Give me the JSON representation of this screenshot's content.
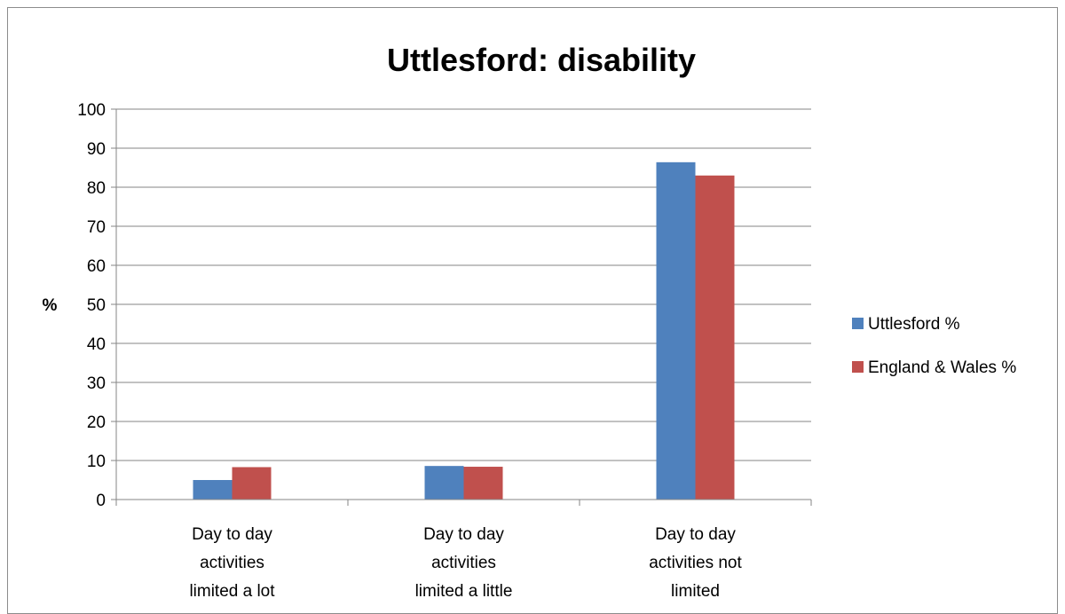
{
  "chart_data": {
    "type": "bar",
    "title": "Uttlesford: disability",
    "xlabel": "",
    "ylabel": "%",
    "ylim": [
      0,
      100
    ],
    "yticks": [
      "0",
      "10",
      "20",
      "30",
      "40",
      "50",
      "60",
      "70",
      "80",
      "90",
      "100"
    ],
    "grid": true,
    "legend_position": "right",
    "categories": [
      [
        "Day to day",
        "activities",
        "limited a lot"
      ],
      [
        "Day to day",
        "activities",
        "limited a little"
      ],
      [
        "Day to day",
        "activities not",
        "limited"
      ]
    ],
    "series": [
      {
        "name": "Uttlesford %",
        "color": "#4f81bd",
        "values": [
          5.0,
          8.6,
          86.4
        ]
      },
      {
        "name": "England & Wales %",
        "color": "#c0504d",
        "values": [
          8.3,
          8.4,
          83.0
        ]
      }
    ]
  }
}
